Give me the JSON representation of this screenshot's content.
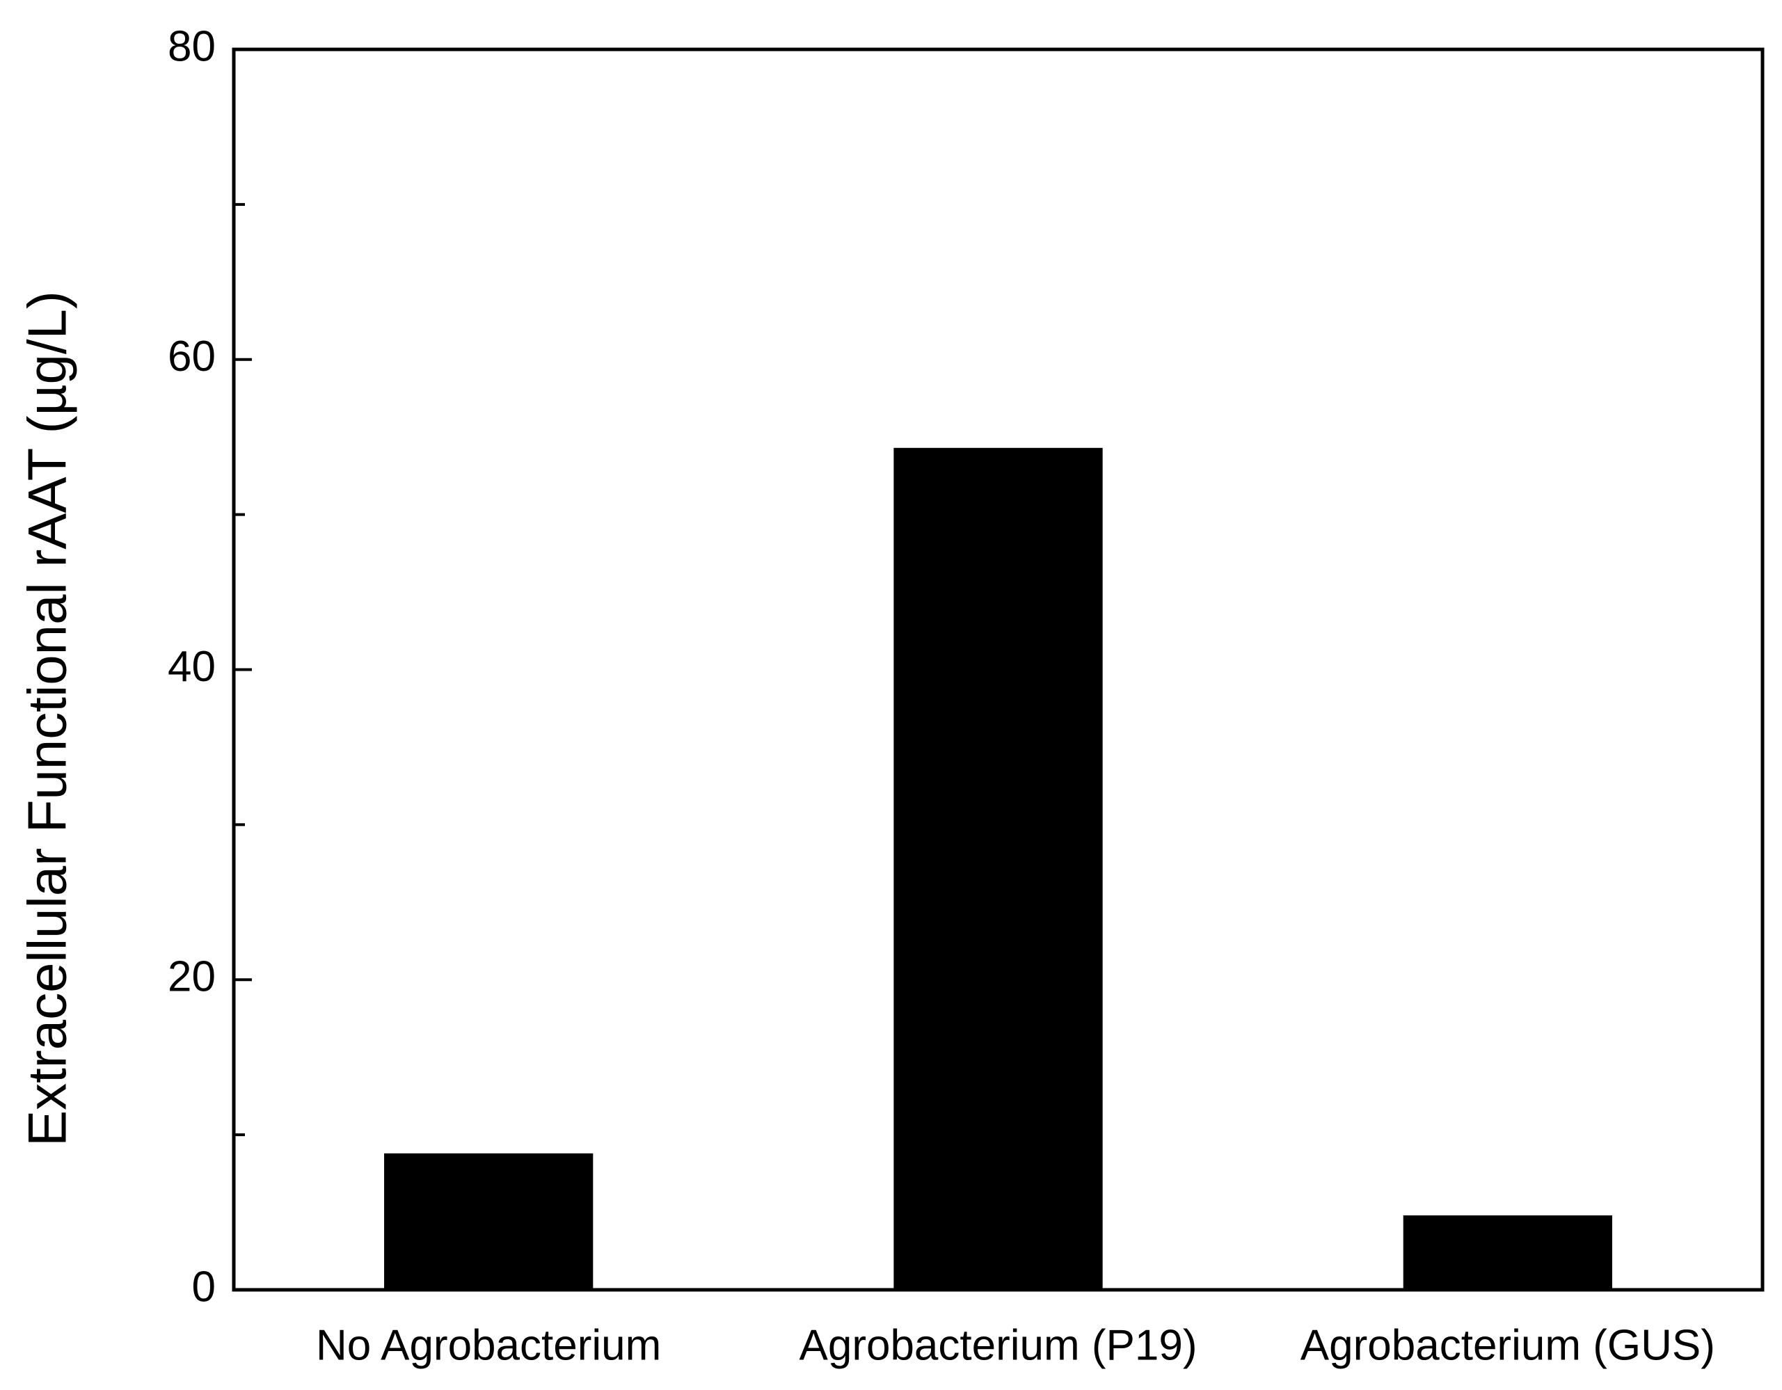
{
  "chart_data": {
    "type": "bar",
    "y_label": "Extracellular Functional rAAT (µg/L)",
    "categories": [
      "No Agrobacterium",
      "Agrobacterium (P19)",
      "Agrobacterium (GUS)"
    ],
    "values": [
      8.8,
      54.3,
      4.8
    ],
    "color": "#000000",
    "ylim": [
      0,
      80
    ],
    "yticks": [
      0,
      20,
      40,
      60,
      80
    ],
    "y_minor_ticks": [
      10,
      30,
      50,
      70
    ],
    "grid": false
  }
}
